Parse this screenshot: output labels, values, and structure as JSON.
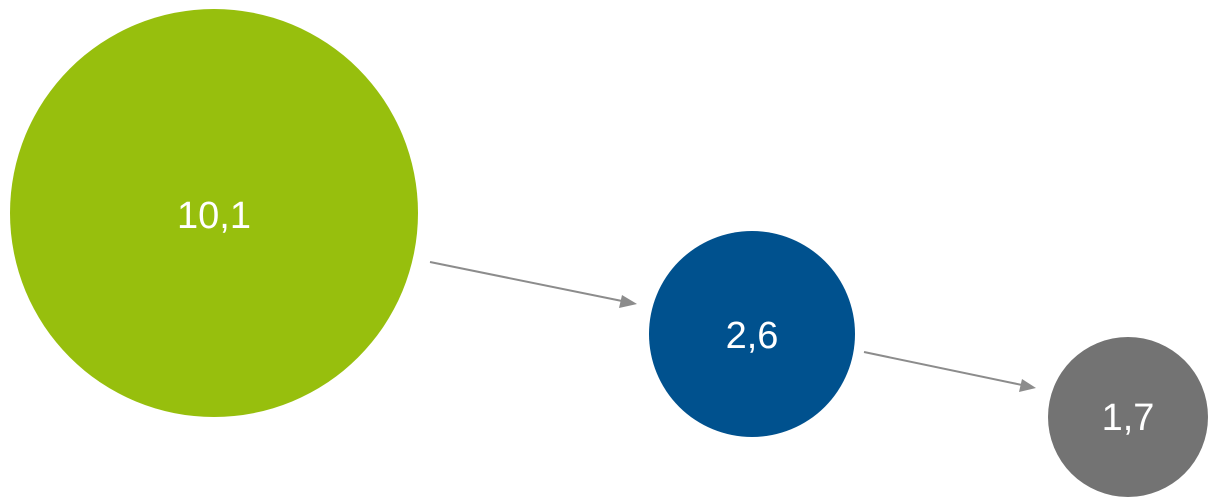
{
  "bubbles": [
    {
      "label": "10,1",
      "value": 10.1,
      "color": "#97bf0d"
    },
    {
      "label": "2,6",
      "value": 2.6,
      "color": "#00518e"
    },
    {
      "label": "1,7",
      "value": 1.7,
      "color": "#737373"
    }
  ],
  "connector_color": "#8c8c8c"
}
